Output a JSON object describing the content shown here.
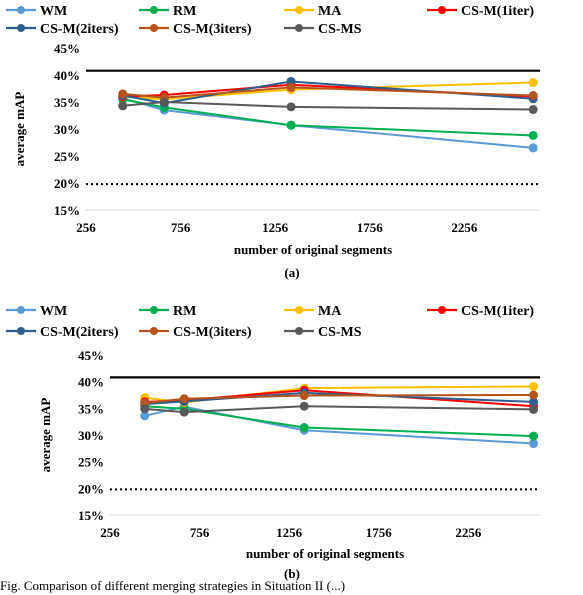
{
  "caption": "Fig. Comparison of different merging strategies in Situation II (...)",
  "chart_data": [
    {
      "type": "line",
      "panel_label": "(a)",
      "xlabel": "number of original segments",
      "ylabel": "average mAP",
      "xlim": [
        256,
        2656
      ],
      "ylim": [
        15,
        45
      ],
      "xticks": [
        256,
        756,
        1256,
        1756,
        2256
      ],
      "xtick_labels": [
        "256",
        "756",
        "1256",
        "1756",
        "2256"
      ],
      "yticks": [
        15,
        20,
        25,
        30,
        35,
        40,
        45
      ],
      "ytick_labels": [
        "15%",
        "20%",
        "25%",
        "30%",
        "35%",
        "40%",
        "45%"
      ],
      "legend_position": "top",
      "reference_lines": [
        {
          "style": "solid",
          "value": 40.8,
          "color": "#000000"
        },
        {
          "style": "dotted",
          "value": 19.8,
          "color": "#000000"
        }
      ],
      "x": [
        450,
        670,
        1340,
        2620
      ],
      "series": [
        {
          "name": "WM",
          "color": "#5b9bd5",
          "values": [
            35.7,
            33.5,
            30.7,
            26.5
          ]
        },
        {
          "name": "RM",
          "color": "#00b050",
          "values": [
            35.5,
            34.0,
            30.7,
            28.8
          ]
        },
        {
          "name": "MA",
          "color": "#ffc000",
          "values": [
            36.0,
            35.5,
            37.3,
            38.6
          ]
        },
        {
          "name": "CS-M(1iter)",
          "color": "#ff0000",
          "values": [
            36.0,
            36.3,
            38.2,
            36.0
          ]
        },
        {
          "name": "CS-M(2iters)",
          "color": "#2e5e8e",
          "values": [
            36.2,
            34.8,
            38.8,
            35.6
          ]
        },
        {
          "name": "CS-M(3iters)",
          "color": "#b5541c",
          "values": [
            36.5,
            35.8,
            37.7,
            36.2
          ]
        },
        {
          "name": "CS-MS",
          "color": "#595959",
          "values": [
            34.3,
            35.0,
            34.1,
            33.6
          ]
        }
      ]
    },
    {
      "type": "line",
      "panel_label": "(b)",
      "xlabel": "number of original segments",
      "ylabel": "average mAP",
      "xlim": [
        256,
        2656
      ],
      "ylim": [
        15,
        45
      ],
      "xticks": [
        256,
        756,
        1256,
        1756,
        2256
      ],
      "xtick_labels": [
        "256",
        "756",
        "1256",
        "1756",
        "2256"
      ],
      "yticks": [
        15,
        20,
        25,
        30,
        35,
        40,
        45
      ],
      "ytick_labels": [
        "15%",
        "20%",
        "25%",
        "30%",
        "35%",
        "40%",
        "45%"
      ],
      "legend_position": "top",
      "reference_lines": [
        {
          "style": "solid",
          "value": 40.8,
          "color": "#000000"
        },
        {
          "style": "dotted",
          "value": 19.8,
          "color": "#000000"
        }
      ],
      "x": [
        450,
        670,
        1340,
        2620
      ],
      "series": [
        {
          "name": "WM",
          "color": "#5b9bd5",
          "values": [
            33.6,
            35.3,
            30.9,
            28.4
          ]
        },
        {
          "name": "RM",
          "color": "#00b050",
          "values": [
            35.4,
            34.9,
            31.4,
            29.8
          ]
        },
        {
          "name": "MA",
          "color": "#ffc000",
          "values": [
            37.0,
            36.1,
            38.8,
            39.1
          ]
        },
        {
          "name": "CS-M(1iter)",
          "color": "#ff0000",
          "values": [
            36.2,
            36.5,
            38.4,
            35.4
          ]
        },
        {
          "name": "CS-M(2iters)",
          "color": "#2e5e8e",
          "values": [
            35.8,
            36.3,
            37.9,
            36.2
          ]
        },
        {
          "name": "CS-M(3iters)",
          "color": "#b5541c",
          "values": [
            36.0,
            36.8,
            37.4,
            37.5
          ]
        },
        {
          "name": "CS-MS",
          "color": "#595959",
          "values": [
            34.9,
            34.3,
            35.4,
            34.8
          ]
        }
      ]
    }
  ]
}
